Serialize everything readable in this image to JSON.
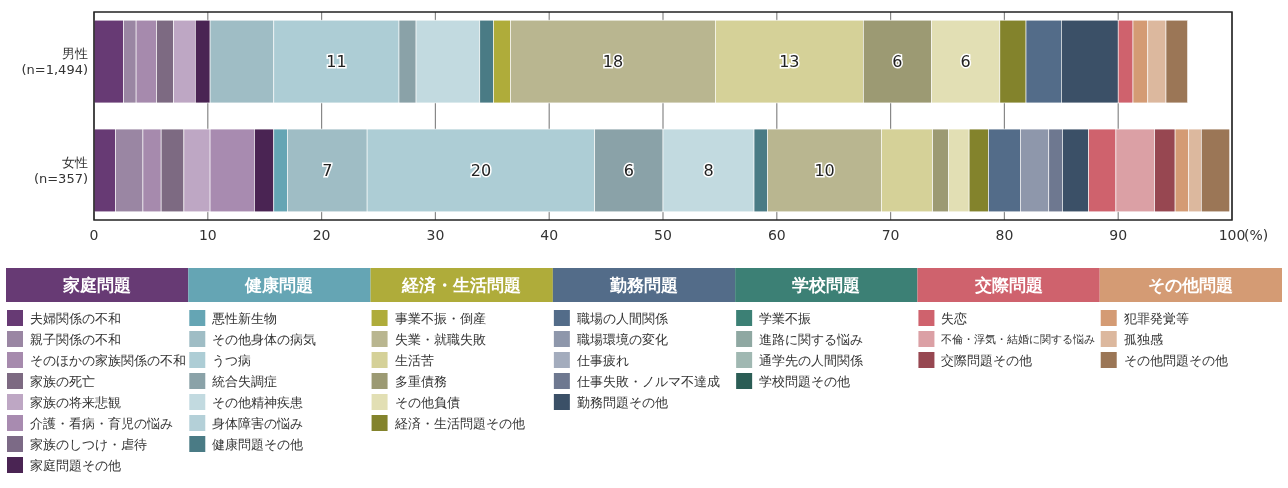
{
  "chart_data": {
    "type": "bar",
    "orientation": "horizontal",
    "stacked": true,
    "categories": [
      "男性\n(n=1,494)",
      "女性\n(n=357)"
    ],
    "xlabel": "(%)",
    "xlim": [
      0,
      100
    ],
    "xticks": [
      0,
      10,
      20,
      30,
      40,
      50,
      60,
      70,
      80,
      90,
      {
        "value": 100,
        "label": "100"
      }
    ],
    "grid": "x",
    "legend": "bottom",
    "annotations": [
      "家庭問題",
      "健康問題",
      "経済・生活問題",
      "勤務問題",
      "学校問題",
      "交際問題",
      "その他問題"
    ],
    "series": [
      {
        "name": "夫婦関係の不和",
        "color": "#673a74",
        "values": [
          2.6,
          1.9
        ]
      },
      {
        "name": "親子関係の不和",
        "color": "#9a86a3",
        "values": [
          1.1,
          2.4
        ]
      },
      {
        "name": "そのほかの家族関係の不和",
        "color": "#a68aad",
        "values": [
          1.8,
          1.6
        ]
      },
      {
        "name": "家族の死亡",
        "color": "#7d6a82",
        "values": [
          1.5,
          2.0
        ]
      },
      {
        "name": "家族の将来悲観",
        "color": "#bea7c4",
        "values": [
          1.9,
          2.3
        ]
      },
      {
        "name": "介護・看病・育児の悩み",
        "color": "#a88bb0",
        "values": [
          0,
          3.9
        ]
      },
      {
        "name": "家族のしつけ・虐待",
        "color": "#7c6a86",
        "values": [
          0,
          0
        ]
      },
      {
        "name": "家庭問題その他",
        "color": "#4a2453",
        "values": [
          1.3,
          1.7
        ]
      },
      {
        "name": "悪性新生物",
        "color": "#65a5b4",
        "values": [
          0,
          1.2
        ]
      },
      {
        "name": "その他身体の病気",
        "color": "#9fbdc5",
        "values": [
          5.6,
          7
        ],
        "value_labels": [
          null,
          "7"
        ]
      },
      {
        "name": "うつ病",
        "color": "#adcdd5",
        "values": [
          11,
          20
        ],
        "value_labels": [
          "11",
          "20"
        ]
      },
      {
        "name": "統合失調症",
        "color": "#8aa2a8",
        "values": [
          1.5,
          6
        ],
        "value_labels": [
          null,
          "6"
        ]
      },
      {
        "name": "その他精神疾患",
        "color": "#c2dae0",
        "values": [
          5.6,
          8
        ],
        "value_labels": [
          null,
          "8"
        ]
      },
      {
        "name": "身体障害の悩み",
        "color": "#b4d0d8",
        "values": [
          0,
          0
        ]
      },
      {
        "name": "健康問題その他",
        "color": "#4a7b85",
        "values": [
          1.2,
          1.2
        ]
      },
      {
        "name": "事業不振・倒産",
        "color": "#afac3a",
        "values": [
          1.5,
          0
        ]
      },
      {
        "name": "失業・就職失敗",
        "color": "#b9b690",
        "values": [
          18,
          10
        ],
        "value_labels": [
          "18",
          "10"
        ]
      },
      {
        "name": "生活苦",
        "color": "#d5d198",
        "values": [
          13,
          4.5
        ],
        "value_labels": [
          "13",
          null
        ]
      },
      {
        "name": "多重債務",
        "color": "#9c9a73",
        "values": [
          6,
          1.4
        ],
        "value_labels": [
          "6",
          null
        ]
      },
      {
        "name": "その他負債",
        "color": "#e2dfb4",
        "values": [
          6,
          1.8
        ],
        "value_labels": [
          "6",
          null
        ]
      },
      {
        "name": "経済・生活問題その他",
        "color": "#83832c",
        "values": [
          2.3,
          1.7
        ]
      },
      {
        "name": "職場の人間関係",
        "color": "#536c89",
        "values": [
          3.1,
          2.8
        ]
      },
      {
        "name": "職場環境の変化",
        "color": "#8e97ab",
        "values": [
          0,
          2.5
        ]
      },
      {
        "name": "仕事疲れ",
        "color": "#a3acbd",
        "values": [
          0,
          0
        ]
      },
      {
        "name": "仕事失敗・ノルマ不達成",
        "color": "#6e7890",
        "values": [
          0,
          1.2
        ]
      },
      {
        "name": "勤務問題その他",
        "color": "#3b5067",
        "values": [
          5,
          2.3
        ]
      },
      {
        "name": "学業不振",
        "color": "#3c8075",
        "values": [
          0,
          0
        ]
      },
      {
        "name": "進路に関する悩み",
        "color": "#8fa8a2",
        "values": [
          0,
          0
        ]
      },
      {
        "name": "通学先の人間関係",
        "color": "#a0b8b2",
        "values": [
          0,
          0
        ]
      },
      {
        "name": "学校問題その他",
        "color": "#2b5d55",
        "values": [
          0,
          0
        ]
      },
      {
        "name": "失恋",
        "color": "#cf626d",
        "values": [
          1.3,
          2.4
        ]
      },
      {
        "name": "不倫・浮気・結婚に関する悩み",
        "color": "#dba0a5",
        "values": [
          0,
          3.4
        ]
      },
      {
        "name": "交際問題その他",
        "color": "#974751",
        "values": [
          0,
          1.8
        ]
      },
      {
        "name": "犯罪発覚等",
        "color": "#d49b74",
        "values": [
          1.3,
          1.2
        ]
      },
      {
        "name": "孤独感",
        "color": "#dcb89e",
        "values": [
          1.6,
          1.1
        ]
      },
      {
        "name": "その他問題その他",
        "color": "#9b7656",
        "values": [
          1.9,
          2.5
        ]
      }
    ]
  }
}
